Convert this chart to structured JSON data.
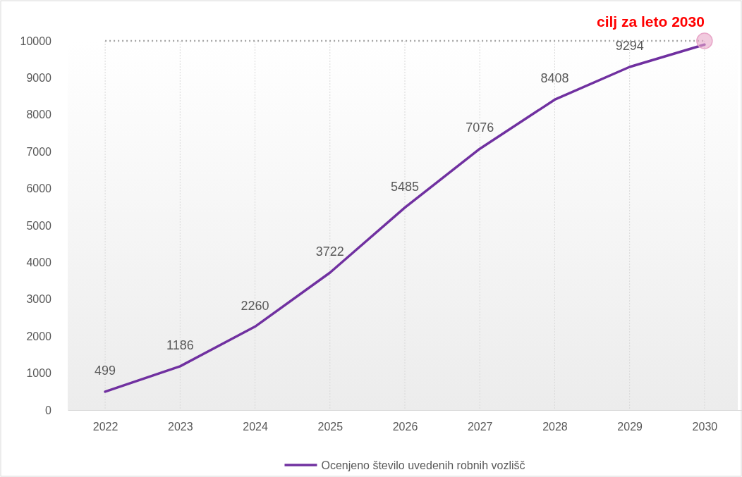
{
  "chart_data": {
    "type": "line",
    "categories": [
      "2022",
      "2023",
      "2024",
      "2025",
      "2026",
      "2027",
      "2028",
      "2029",
      "2030"
    ],
    "series": [
      {
        "name": "Ocenjeno število uvedenih robnih vozlišč",
        "color": "#7030a0",
        "values": [
          499,
          1186,
          2260,
          3722,
          5485,
          7076,
          8408,
          9294,
          9900
        ],
        "value_labels": [
          "499",
          "1186",
          "2260",
          "3722",
          "5485",
          "7076",
          "8408",
          "9294",
          null
        ]
      },
      {
        "type": "scatter",
        "color": "#e8a6c8",
        "marker": "circle",
        "values": [
          null,
          null,
          null,
          null,
          null,
          null,
          null,
          null,
          10000
        ]
      }
    ],
    "ylim": [
      0,
      10000
    ],
    "yticks": [
      0,
      1000,
      2000,
      3000,
      4000,
      5000,
      6000,
      7000,
      8000,
      9000,
      10000
    ],
    "grid": "x",
    "legend": "bottom",
    "line_style": "solid",
    "ref_lines": [
      {
        "axis": "y",
        "value": 10000,
        "color": "#a6a6a6",
        "line_style": "dotted"
      }
    ],
    "annotations": [
      {
        "text": "cilj za leto 2030",
        "x": "2030",
        "y": 10000
      }
    ]
  }
}
